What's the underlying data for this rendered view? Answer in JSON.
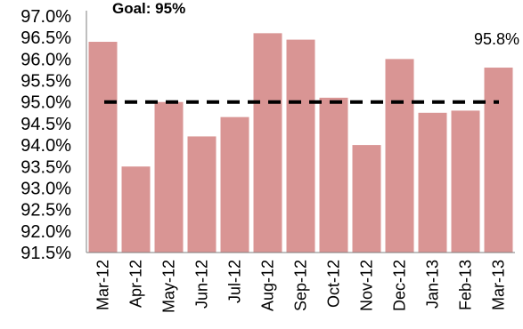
{
  "chart_data": {
    "type": "bar",
    "categories": [
      "Mar-12",
      "Apr-12",
      "May-12",
      "Jun-12",
      "Jul-12",
      "Aug-12",
      "Sep-12",
      "Oct-12",
      "Nov-12",
      "Dec-12",
      "Jan-13",
      "Feb-13",
      "Mar-13"
    ],
    "values": [
      96.4,
      93.5,
      95.0,
      94.2,
      94.65,
      96.6,
      96.45,
      95.1,
      94.0,
      96.0,
      94.75,
      94.8,
      95.8
    ],
    "yticks": [
      "97.0%",
      "96.5%",
      "96.0%",
      "95.5%",
      "95.0%",
      "94.5%",
      "94.0%",
      "93.5%",
      "93.0%",
      "92.5%",
      "92.0%",
      "91.5%"
    ],
    "ylim": [
      91.5,
      97.0
    ],
    "goal": {
      "value": 95.0,
      "label": "Goal: 95%"
    },
    "last_value_label": "95.8%",
    "bar_color": "#d99594",
    "goal_line_color": "#000000",
    "grid": false
  }
}
